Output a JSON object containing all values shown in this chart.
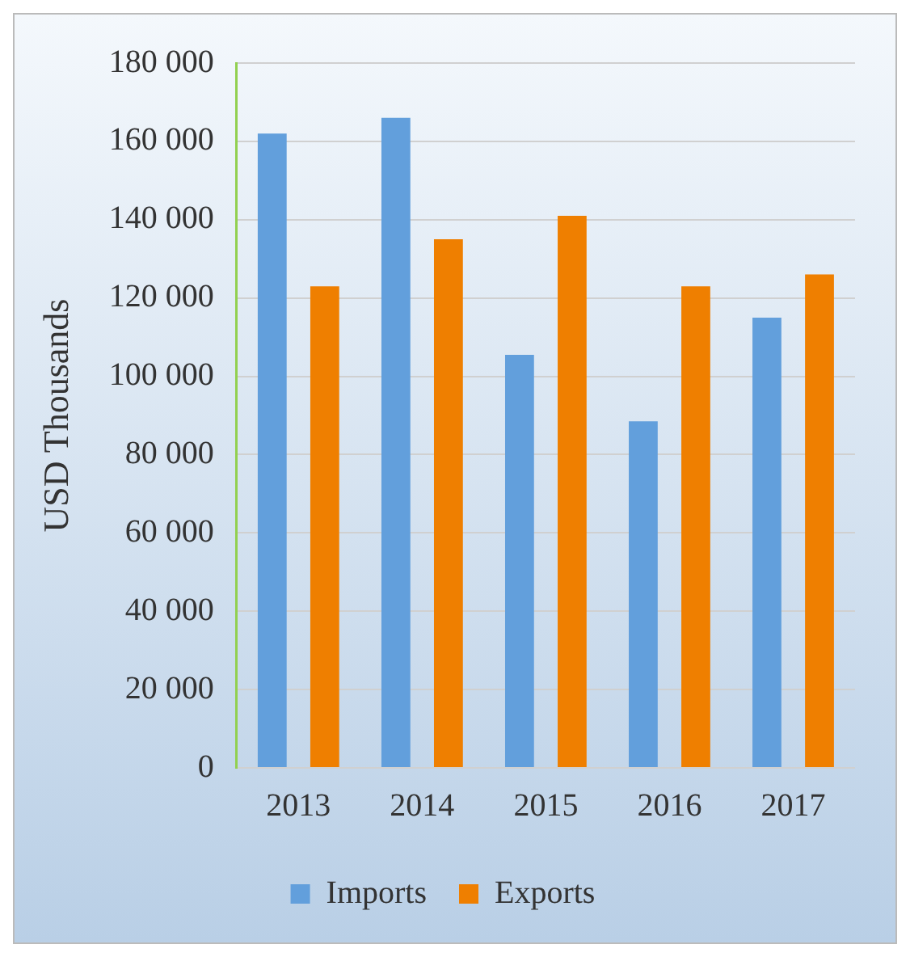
{
  "chart_data": {
    "type": "bar",
    "ylabel": "USD Thousands",
    "categories": [
      "2013",
      "2014",
      "2015",
      "2016",
      "2017"
    ],
    "series": [
      {
        "name": "Imports",
        "color": "#629fdc",
        "values": [
          162000,
          166000,
          105500,
          88500,
          115000
        ]
      },
      {
        "name": "Exports",
        "color": "#ef7f00",
        "values": [
          123000,
          135000,
          141000,
          123000,
          126000
        ]
      }
    ],
    "ylim": [
      0,
      180000
    ],
    "yticks": [
      {
        "value": 0,
        "label": "0"
      },
      {
        "value": 20000,
        "label": "20 000"
      },
      {
        "value": 40000,
        "label": "40 000"
      },
      {
        "value": 60000,
        "label": "60 000"
      },
      {
        "value": 80000,
        "label": "80 000"
      },
      {
        "value": 100000,
        "label": "100 000"
      },
      {
        "value": 120000,
        "label": "120 000"
      },
      {
        "value": 140000,
        "label": "140 000"
      },
      {
        "value": 160000,
        "label": "160 000"
      },
      {
        "value": 180000,
        "label": "180 000"
      }
    ],
    "grid": "y",
    "legend": "bottom"
  }
}
